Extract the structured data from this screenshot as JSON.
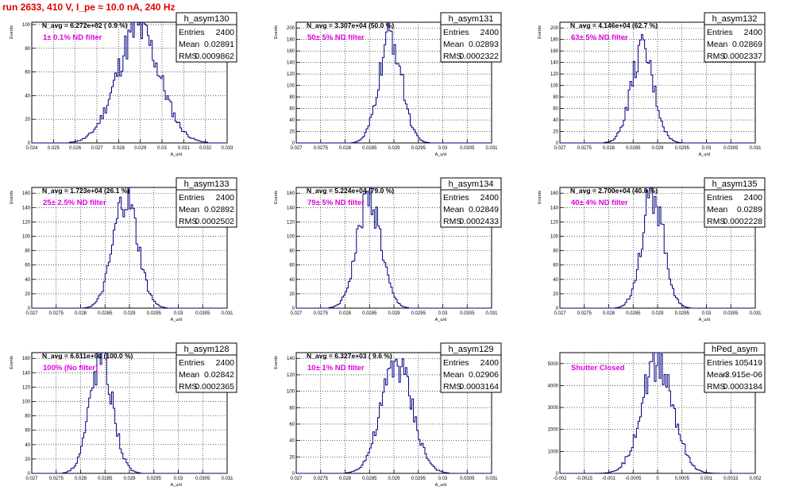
{
  "title": "run 2633,   410 V, I_pe ≈ 10.0 nA, 240 Hz",
  "chart_data": [
    {
      "type": "histogram",
      "name": "h_asym130",
      "navg": "N_avg = 6.272e+02 ( 0.9 %)",
      "filter_label": "1± 0.1% ND filter",
      "stats": [
        [
          "Entries",
          "2400"
        ],
        [
          "Mean",
          "0.02891"
        ],
        [
          "RMS",
          "0.0009862"
        ]
      ],
      "xlim": [
        0.024,
        0.033
      ],
      "ylim": [
        0,
        102
      ],
      "xticks": [
        "0.024",
        "0.025",
        "0.026",
        "0.027",
        "0.028",
        "0.029",
        "0.03",
        "0.031",
        "0.032",
        "0.033"
      ],
      "yticks": [
        0,
        20,
        40,
        60,
        80,
        100
      ],
      "ylabel": "Events",
      "xlabel": "A_u/d",
      "mean": 0.02891,
      "rms": 0.0009862,
      "peak": 96
    },
    {
      "type": "histogram",
      "name": "h_asym131",
      "navg": "N_avg = 3.307e+04 (50.0 %)",
      "filter_label": "50± 5% ND filter",
      "stats": [
        [
          "Entries",
          "2400"
        ],
        [
          "Mean",
          "0.02893"
        ],
        [
          "RMS",
          "0.0002322"
        ]
      ],
      "xlim": [
        0.027,
        0.031
      ],
      "ylim": [
        0,
        210
      ],
      "xticks": [
        "0.027",
        "0.0275",
        "0.028",
        "0.0285",
        "0.029",
        "0.0295",
        "0.03",
        "0.0305",
        "0.031"
      ],
      "yticks": [
        0,
        20,
        40,
        60,
        80,
        100,
        120,
        140,
        160,
        180,
        200
      ],
      "ylabel": "Events",
      "xlabel": "A_u/d",
      "mean": 0.02893,
      "rms": 0.0002322,
      "peak": 185
    },
    {
      "type": "histogram",
      "name": "h_asym132",
      "navg": "N_avg = 4.146e+04 (62.7 %)",
      "filter_label": "63± 5% ND filter",
      "stats": [
        [
          "Entries",
          "2400"
        ],
        [
          "Mean",
          "0.02869"
        ],
        [
          "RMS",
          "0.0002337"
        ]
      ],
      "xlim": [
        0.027,
        0.031
      ],
      "ylim": [
        0,
        210
      ],
      "xticks": [
        "0.027",
        "0.0275",
        "0.028",
        "0.0285",
        "0.029",
        "0.0295",
        "0.03",
        "0.0305",
        "0.031"
      ],
      "yticks": [
        0,
        20,
        40,
        60,
        80,
        100,
        120,
        140,
        160,
        180,
        200
      ],
      "ylabel": "Events",
      "xlabel": "A_u/d",
      "mean": 0.02869,
      "rms": 0.0002337,
      "peak": 160
    },
    {
      "type": "histogram",
      "name": "h_asym133",
      "navg": "N_avg = 1.723e+04 (26.1 %)",
      "filter_label": "25± 2.5% ND filter",
      "stats": [
        [
          "Entries",
          "2400"
        ],
        [
          "Mean",
          "0.02892"
        ],
        [
          "RMS",
          "0.0002502"
        ]
      ],
      "xlim": [
        0.027,
        0.031
      ],
      "ylim": [
        0,
        168
      ],
      "xticks": [
        "0.027",
        "0.0275",
        "0.028",
        "0.0285",
        "0.029",
        "0.0295",
        "0.03",
        "0.0305",
        "0.031"
      ],
      "yticks": [
        0,
        20,
        40,
        60,
        80,
        100,
        120,
        140,
        160
      ],
      "ylabel": "Events",
      "xlabel": "A_u/d",
      "mean": 0.02892,
      "rms": 0.0002502,
      "peak": 152
    },
    {
      "type": "histogram",
      "name": "h_asym134",
      "navg": "N_avg = 5.224e+04 (79.0 %)",
      "filter_label": "79± 5% ND filter",
      "stats": [
        [
          "Entries",
          "2400"
        ],
        [
          "Mean",
          "0.02849"
        ],
        [
          "RMS",
          "0.0002433"
        ]
      ],
      "xlim": [
        0.027,
        0.031
      ],
      "ylim": [
        0,
        168
      ],
      "xticks": [
        "0.027",
        "0.0275",
        "0.028",
        "0.0285",
        "0.029",
        "0.0295",
        "0.03",
        "0.0305",
        "0.031"
      ],
      "yticks": [
        0,
        20,
        40,
        60,
        80,
        100,
        120,
        140,
        160
      ],
      "ylabel": "Events",
      "xlabel": "A_u/d",
      "mean": 0.02849,
      "rms": 0.0002433,
      "peak": 155
    },
    {
      "type": "histogram",
      "name": "h_asym135",
      "navg": "N_avg = 2.700e+04 (40.8 %)",
      "filter_label": "40± 4% ND filter",
      "stats": [
        [
          "Entries",
          "2400"
        ],
        [
          "Mean",
          "0.0289"
        ],
        [
          "RMS",
          "0.0002228"
        ]
      ],
      "xlim": [
        0.027,
        0.031
      ],
      "ylim": [
        0,
        168
      ],
      "xticks": [
        "0.027",
        "0.0275",
        "0.028",
        "0.0285",
        "0.029",
        "0.0295",
        "0.03",
        "0.0305",
        "0.031"
      ],
      "yticks": [
        0,
        20,
        40,
        60,
        80,
        100,
        120,
        140,
        160
      ],
      "ylabel": "Events",
      "xlabel": "A_u/d",
      "mean": 0.0289,
      "rms": 0.0002228,
      "peak": 160
    },
    {
      "type": "histogram",
      "name": "h_asym128",
      "navg": "N_avg = 6.611e+04 (100.0 %)",
      "filter_label": "100% (No filter)",
      "stats": [
        [
          "Entries",
          "2400"
        ],
        [
          "Mean",
          "0.02842"
        ],
        [
          "RMS",
          "0.0002365"
        ]
      ],
      "xlim": [
        0.027,
        0.031
      ],
      "ylim": [
        0,
        168
      ],
      "xticks": [
        "0.027",
        "0.0275",
        "0.028",
        "0.0285",
        "0.029",
        "0.0295",
        "0.03",
        "0.0305",
        "0.031"
      ],
      "yticks": [
        0,
        20,
        40,
        60,
        80,
        100,
        120,
        140,
        160
      ],
      "ylabel": "Events",
      "xlabel": "A_u/d",
      "mean": 0.02842,
      "rms": 0.0002365,
      "peak": 160
    },
    {
      "type": "histogram",
      "name": "h_asym129",
      "navg": "N_avg = 6.327e+03 ( 9.6 %)",
      "filter_label": "10± 1% ND filter",
      "stats": [
        [
          "Entries",
          "2400"
        ],
        [
          "Mean",
          "0.02906"
        ],
        [
          "RMS",
          "0.0003164"
        ]
      ],
      "xlim": [
        0.027,
        0.031
      ],
      "ylim": [
        0,
        147
      ],
      "xticks": [
        "0.027",
        "0.0275",
        "0.028",
        "0.0285",
        "0.029",
        "0.0295",
        "0.03",
        "0.0305",
        "0.031"
      ],
      "yticks": [
        0,
        20,
        40,
        60,
        80,
        100,
        120,
        140
      ],
      "ylabel": "Events",
      "xlabel": "A_u/d",
      "mean": 0.02906,
      "rms": 0.0003164,
      "peak": 135
    },
    {
      "type": "histogram",
      "name": "hPed_asym",
      "navg": "",
      "filter_label": "Shutter Closed",
      "stats": [
        [
          "Entries",
          "105419"
        ],
        [
          "Mean",
          "-3.915e-06"
        ],
        [
          "RMS",
          "0.0003184"
        ]
      ],
      "xlim": [
        -0.002,
        0.002
      ],
      "ylim": [
        0,
        5500
      ],
      "xticks": [
        "-0.002",
        "-0.0015",
        "-0.001",
        "-0.0005",
        "0",
        "0.0005",
        "0.001",
        "0.0015",
        "0.002"
      ],
      "yticks": [
        0,
        1000,
        2000,
        3000,
        4000,
        5000
      ],
      "ylabel": "",
      "xlabel": "",
      "mean": -4e-06,
      "rms": 0.0003184,
      "peak": 5150
    }
  ]
}
